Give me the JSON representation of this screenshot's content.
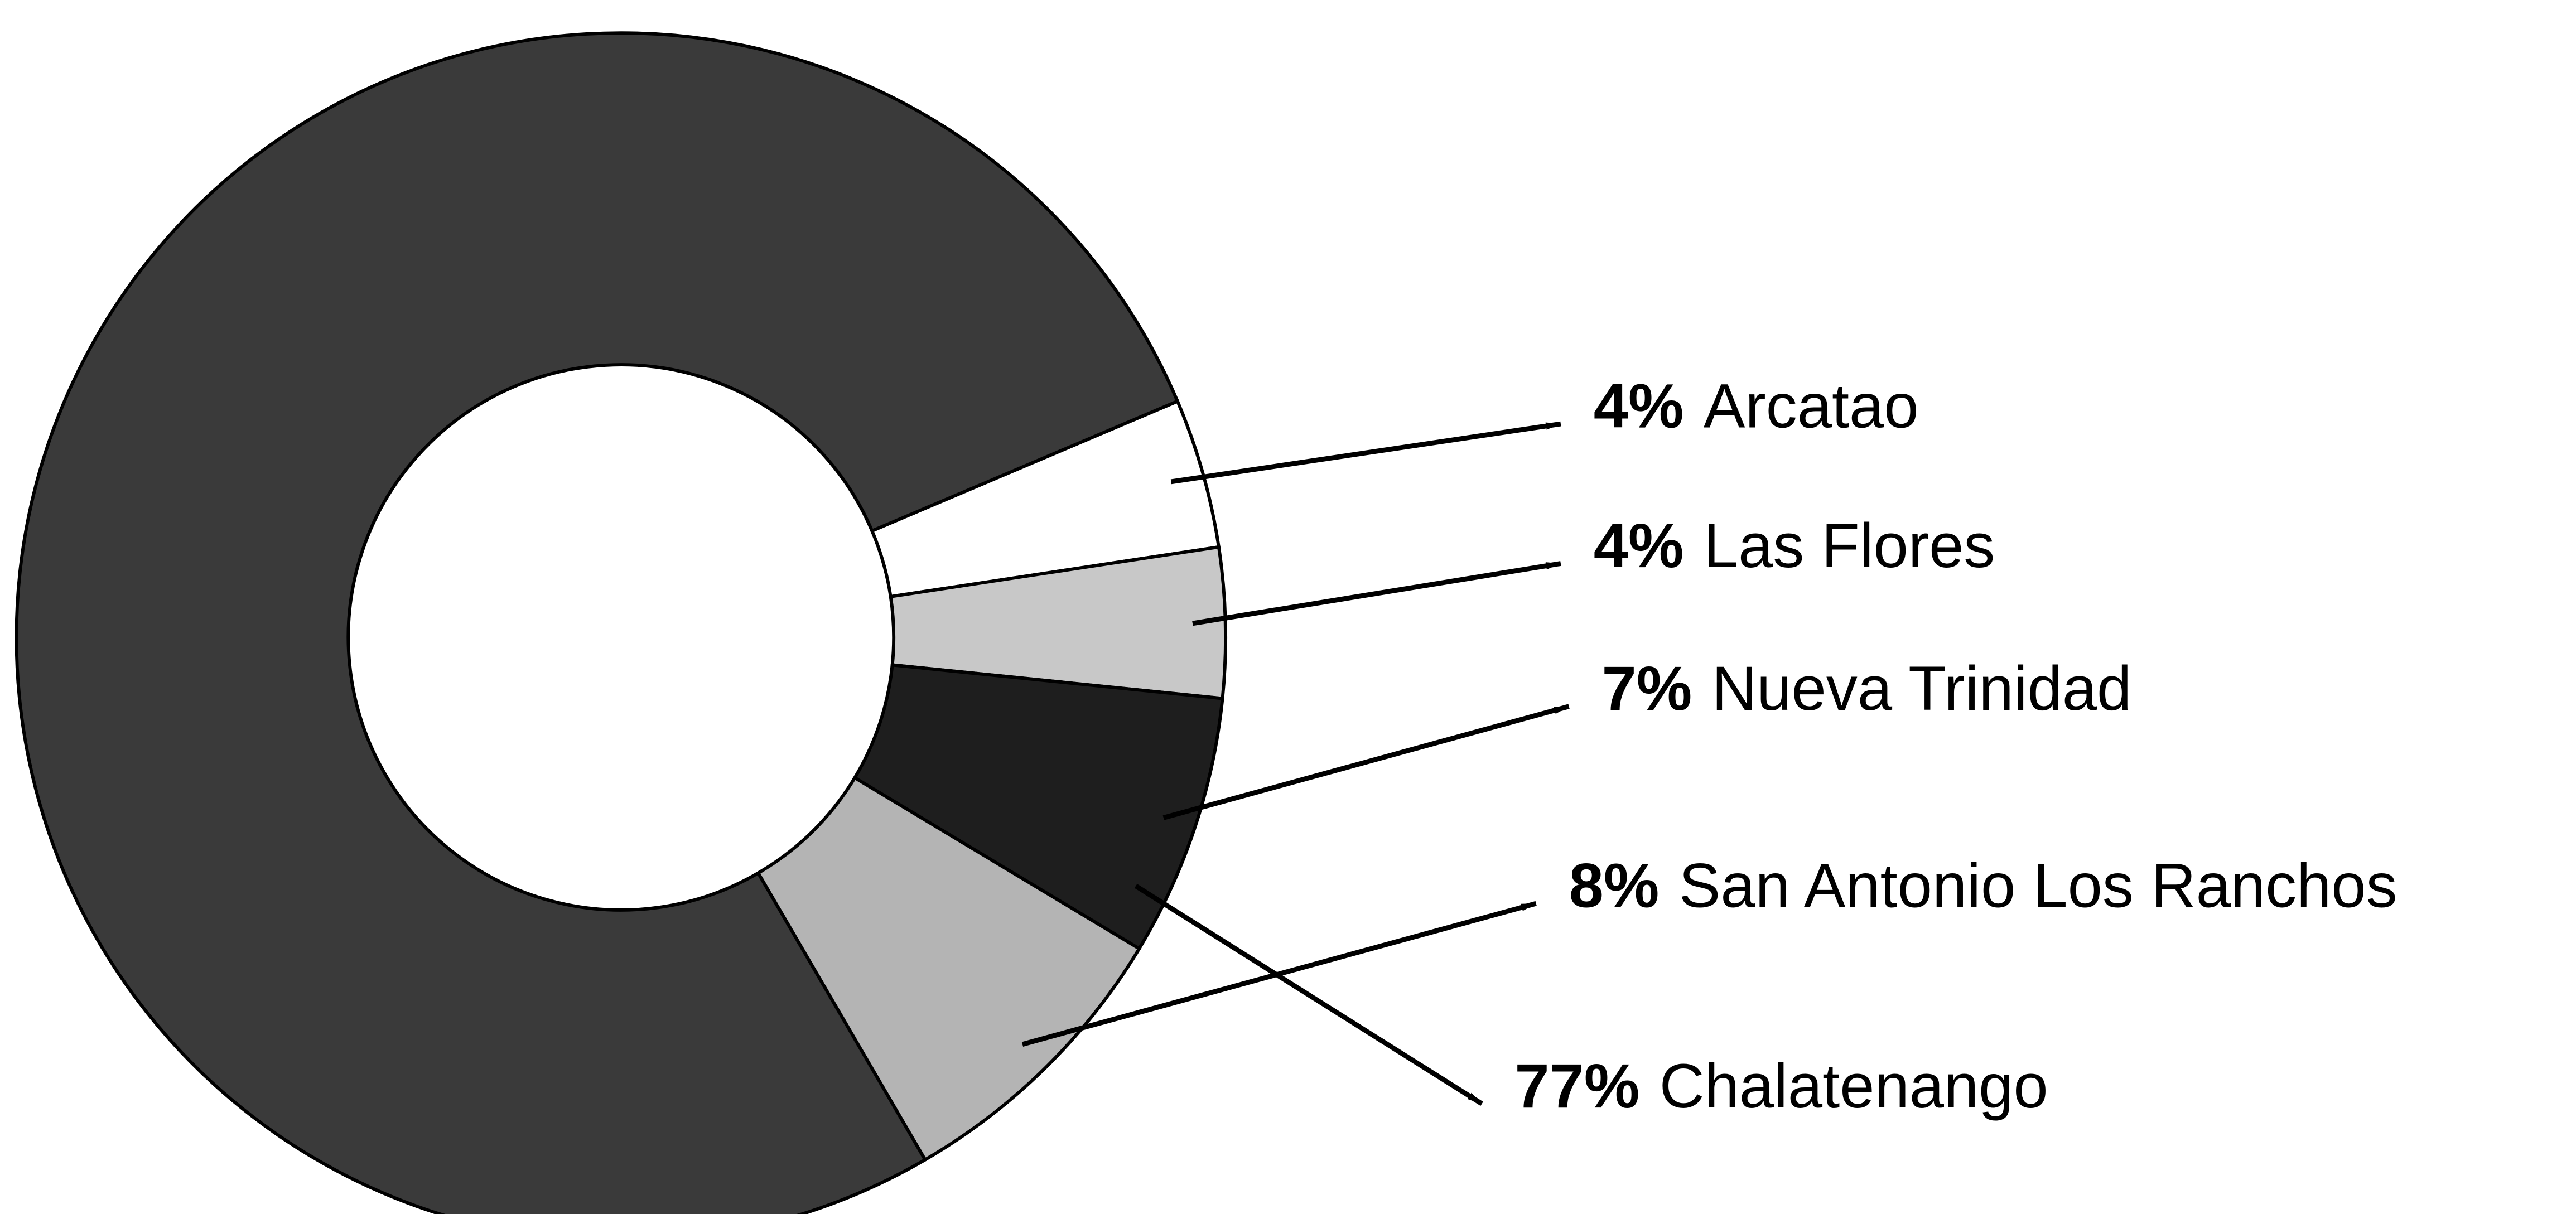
{
  "chart_data": {
    "type": "donut",
    "categories": [
      "Arcatao",
      "Las Flores",
      "Nueva Trinidad",
      "San Antonio Los Ranchos",
      "Chalatenango"
    ],
    "values": [
      4,
      4,
      7,
      8,
      77
    ],
    "value_labels": [
      "4%",
      "4%",
      "7%",
      "8%",
      "77%"
    ],
    "colors": [
      "#ffffff",
      "#c8c8c8",
      "#1e1e1e",
      "#b4b4b4",
      "#3a3a3a"
    ]
  }
}
